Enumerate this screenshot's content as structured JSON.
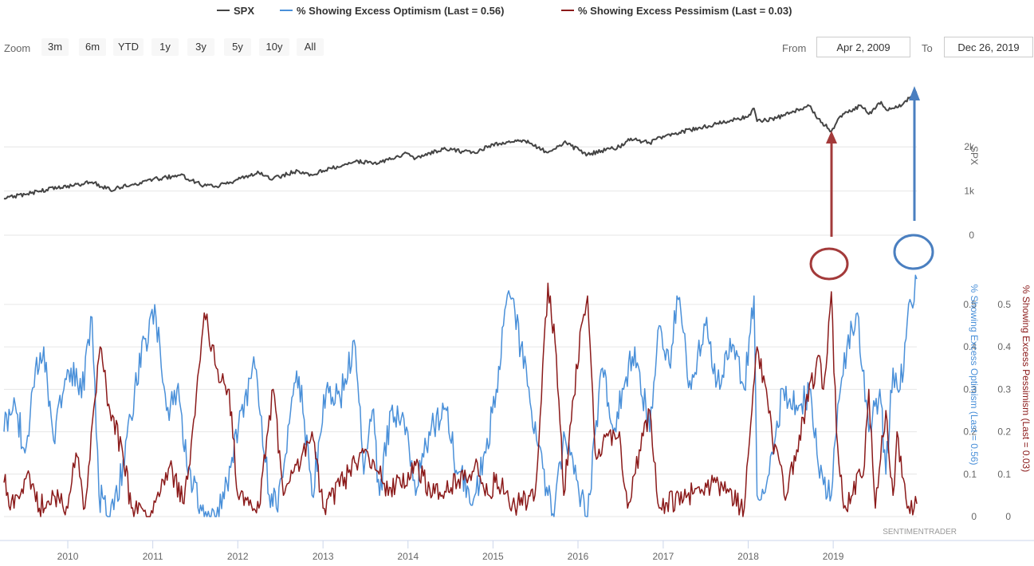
{
  "legend": [
    {
      "label": "SPX",
      "color": "#444444"
    },
    {
      "label": "% Showing Excess Optimism (Last = 0.56)",
      "color": "#4a90d9"
    },
    {
      "label": "% Showing Excess Pessimism (Last = 0.03)",
      "color": "#8b1a1a"
    }
  ],
  "zoom": {
    "label": "Zoom",
    "buttons": [
      "3m",
      "6m",
      "YTD",
      "1y",
      "3y",
      "5y",
      "10y",
      "All"
    ]
  },
  "range": {
    "from_label": "From",
    "from_value": "Apr 2, 2009",
    "to_label": "To",
    "to_value": "Dec 26, 2019"
  },
  "credit": "SENTIMENTRADER",
  "chart_data": {
    "type": "line",
    "x_range": [
      "2009-04-02",
      "2019-12-26"
    ],
    "x_ticks": [
      "2010",
      "2011",
      "2012",
      "2013",
      "2014",
      "2015",
      "2016",
      "2017",
      "2018",
      "2019"
    ],
    "panels": [
      {
        "name": "spx_panel",
        "y_axis_title": "SPX",
        "y_ticks": [
          "0",
          "1k",
          "2k"
        ],
        "ylim": [
          0,
          3250
        ],
        "series": [
          {
            "name": "SPX",
            "color": "#444444",
            "points": [
              [
                "2009-04-02",
                830
              ],
              [
                "2009-07-01",
                920
              ],
              [
                "2009-10-01",
                1030
              ],
              [
                "2010-01-01",
                1115
              ],
              [
                "2010-04-15",
                1200
              ],
              [
                "2010-07-01",
                1030
              ],
              [
                "2010-10-01",
                1140
              ],
              [
                "2011-01-01",
                1260
              ],
              [
                "2011-04-29",
                1360
              ],
              [
                "2011-08-08",
                1120
              ],
              [
                "2011-10-03",
                1100
              ],
              [
                "2012-01-01",
                1260
              ],
              [
                "2012-04-01",
                1410
              ],
              [
                "2012-06-01",
                1280
              ],
              [
                "2012-09-14",
                1460
              ],
              [
                "2012-11-15",
                1360
              ],
              [
                "2013-01-01",
                1460
              ],
              [
                "2013-05-20",
                1670
              ],
              [
                "2013-08-30",
                1630
              ],
              [
                "2013-12-31",
                1850
              ],
              [
                "2014-02-03",
                1740
              ],
              [
                "2014-06-01",
                1950
              ],
              [
                "2014-10-15",
                1860
              ],
              [
                "2014-12-31",
                2060
              ],
              [
                "2015-05-20",
                2130
              ],
              [
                "2015-08-25",
                1870
              ],
              [
                "2015-11-01",
                2100
              ],
              [
                "2016-02-11",
                1830
              ],
              [
                "2016-06-27",
                2000
              ],
              [
                "2016-08-15",
                2190
              ],
              [
                "2016-11-04",
                2085
              ],
              [
                "2016-12-31",
                2240
              ],
              [
                "2017-06-01",
                2430
              ],
              [
                "2017-12-31",
                2680
              ],
              [
                "2018-01-26",
                2870
              ],
              [
                "2018-02-08",
                2580
              ],
              [
                "2018-05-01",
                2650
              ],
              [
                "2018-09-20",
                2930
              ],
              [
                "2018-10-29",
                2640
              ],
              [
                "2018-12-24",
                2350
              ],
              [
                "2019-02-01",
                2700
              ],
              [
                "2019-04-30",
                2940
              ],
              [
                "2019-06-03",
                2740
              ],
              [
                "2019-07-26",
                3020
              ],
              [
                "2019-08-15",
                2850
              ],
              [
                "2019-10-02",
                2890
              ],
              [
                "2019-12-26",
                3240
              ]
            ]
          }
        ]
      },
      {
        "name": "sentiment_panel",
        "y_axis_title": "% Showing Excess Optimism (Last = 0.56)",
        "y2_axis_title": "% Showing Excess Pessimism (Last = 0.03)",
        "y_ticks": [
          "0",
          "0.1",
          "0.2",
          "0.3",
          "0.4",
          "0.5"
        ],
        "ylim": [
          0,
          0.56
        ],
        "series": [
          {
            "name": "% Showing Excess Optimism (Last = 0.56)",
            "color": "#4a90d9",
            "points": [
              [
                "2009-04-02",
                0.2
              ],
              [
                "2009-05-15",
                0.28
              ],
              [
                "2009-07-01",
                0.15
              ],
              [
                "2009-08-15",
                0.35
              ],
              [
                "2009-09-20",
                0.4
              ],
              [
                "2009-11-01",
                0.18
              ],
              [
                "2009-12-15",
                0.3
              ],
              [
                "2010-01-15",
                0.35
              ],
              [
                "2010-03-01",
                0.28
              ],
              [
                "2010-04-15",
                0.47
              ],
              [
                "2010-05-15",
                0.05
              ],
              [
                "2010-07-01",
                0.0
              ],
              [
                "2010-09-01",
                0.12
              ],
              [
                "2010-10-15",
                0.3
              ],
              [
                "2010-12-01",
                0.42
              ],
              [
                "2011-01-15",
                0.47
              ],
              [
                "2011-03-01",
                0.25
              ],
              [
                "2011-04-15",
                0.3
              ],
              [
                "2011-06-01",
                0.1
              ],
              [
                "2011-08-10",
                0.0
              ],
              [
                "2011-10-01",
                0.0
              ],
              [
                "2011-11-15",
                0.08
              ],
              [
                "2012-01-15",
                0.25
              ],
              [
                "2012-03-15",
                0.35
              ],
              [
                "2012-05-15",
                0.05
              ],
              [
                "2012-06-15",
                0.02
              ],
              [
                "2012-08-15",
                0.25
              ],
              [
                "2012-09-20",
                0.33
              ],
              [
                "2012-11-15",
                0.05
              ],
              [
                "2013-01-15",
                0.3
              ],
              [
                "2013-03-15",
                0.28
              ],
              [
                "2013-05-20",
                0.4
              ],
              [
                "2013-06-25",
                0.1
              ],
              [
                "2013-08-01",
                0.25
              ],
              [
                "2013-09-01",
                0.05
              ],
              [
                "2013-10-20",
                0.25
              ],
              [
                "2013-12-31",
                0.2
              ],
              [
                "2014-02-03",
                0.05
              ],
              [
                "2014-04-01",
                0.2
              ],
              [
                "2014-06-15",
                0.25
              ],
              [
                "2014-08-01",
                0.1
              ],
              [
                "2014-10-15",
                0.05
              ],
              [
                "2014-12-01",
                0.15
              ],
              [
                "2015-01-15",
                0.3
              ],
              [
                "2015-02-15",
                0.45
              ],
              [
                "2015-03-15",
                0.52
              ],
              [
                "2015-05-01",
                0.4
              ],
              [
                "2015-06-15",
                0.25
              ],
              [
                "2015-08-25",
                0.05
              ],
              [
                "2015-09-20",
                0.0
              ],
              [
                "2015-11-01",
                0.2
              ],
              [
                "2015-12-15",
                0.1
              ],
              [
                "2016-02-11",
                0.0
              ],
              [
                "2016-04-15",
                0.35
              ],
              [
                "2016-06-01",
                0.2
              ],
              [
                "2016-07-15",
                0.3
              ],
              [
                "2016-09-01",
                0.4
              ],
              [
                "2016-11-04",
                0.2
              ],
              [
                "2016-12-15",
                0.45
              ],
              [
                "2017-02-01",
                0.35
              ],
              [
                "2017-03-01",
                0.52
              ],
              [
                "2017-05-01",
                0.3
              ],
              [
                "2017-07-01",
                0.45
              ],
              [
                "2017-09-01",
                0.3
              ],
              [
                "2017-10-15",
                0.42
              ],
              [
                "2017-12-15",
                0.3
              ],
              [
                "2018-01-26",
                0.52
              ],
              [
                "2018-02-08",
                0.05
              ],
              [
                "2018-04-01",
                0.1
              ],
              [
                "2018-06-01",
                0.3
              ],
              [
                "2018-08-01",
                0.25
              ],
              [
                "2018-09-20",
                0.3
              ],
              [
                "2018-10-29",
                0.12
              ],
              [
                "2018-12-24",
                0.05
              ],
              [
                "2019-02-01",
                0.3
              ],
              [
                "2019-03-01",
                0.4
              ],
              [
                "2019-04-15",
                0.48
              ],
              [
                "2019-06-03",
                0.2
              ],
              [
                "2019-07-20",
                0.3
              ],
              [
                "2019-08-15",
                0.1
              ],
              [
                "2019-09-15",
                0.35
              ],
              [
                "2019-10-15",
                0.3
              ],
              [
                "2019-11-15",
                0.46
              ],
              [
                "2019-12-26",
                0.56
              ]
            ]
          },
          {
            "name": "% Showing Excess Pessimism (Last = 0.03)",
            "color": "#8b1a1a",
            "points": [
              [
                "2009-04-02",
                0.08
              ],
              [
                "2009-05-15",
                0.02
              ],
              [
                "2009-07-10",
                0.1
              ],
              [
                "2009-09-01",
                0.02
              ],
              [
                "2009-11-01",
                0.05
              ],
              [
                "2010-01-01",
                0.02
              ],
              [
                "2010-02-05",
                0.15
              ],
              [
                "2010-03-15",
                0.02
              ],
              [
                "2010-05-20",
                0.4
              ],
              [
                "2010-07-01",
                0.25
              ],
              [
                "2010-08-25",
                0.15
              ],
              [
                "2010-10-01",
                0.02
              ],
              [
                "2010-12-15",
                0.0
              ],
              [
                "2011-03-15",
                0.12
              ],
              [
                "2011-05-15",
                0.03
              ],
              [
                "2011-06-20",
                0.2
              ],
              [
                "2011-08-10",
                0.48
              ],
              [
                "2011-10-01",
                0.35
              ],
              [
                "2011-11-25",
                0.3
              ],
              [
                "2012-01-01",
                0.05
              ],
              [
                "2012-04-01",
                0.02
              ],
              [
                "2012-06-01",
                0.3
              ],
              [
                "2012-07-15",
                0.05
              ],
              [
                "2012-11-15",
                0.2
              ],
              [
                "2013-01-01",
                0.02
              ],
              [
                "2013-06-25",
                0.15
              ],
              [
                "2013-08-30",
                0.1
              ],
              [
                "2013-10-08",
                0.05
              ],
              [
                "2014-02-03",
                0.12
              ],
              [
                "2014-04-15",
                0.05
              ],
              [
                "2014-08-01",
                0.08
              ],
              [
                "2014-10-15",
                0.12
              ],
              [
                "2014-12-15",
                0.05
              ],
              [
                "2015-01-15",
                0.1
              ],
              [
                "2015-03-15",
                0.02
              ],
              [
                "2015-06-30",
                0.05
              ],
              [
                "2015-08-25",
                0.55
              ],
              [
                "2015-09-30",
                0.38
              ],
              [
                "2015-11-01",
                0.05
              ],
              [
                "2016-01-15",
                0.45
              ],
              [
                "2016-02-11",
                0.52
              ],
              [
                "2016-03-15",
                0.15
              ],
              [
                "2016-06-27",
                0.2
              ],
              [
                "2016-08-01",
                0.02
              ],
              [
                "2016-11-04",
                0.25
              ],
              [
                "2016-12-15",
                0.02
              ],
              [
                "2017-04-15",
                0.05
              ],
              [
                "2017-08-15",
                0.08
              ],
              [
                "2017-12-15",
                0.02
              ],
              [
                "2018-02-08",
                0.4
              ],
              [
                "2018-03-20",
                0.3
              ],
              [
                "2018-04-15",
                0.18
              ],
              [
                "2018-06-15",
                0.05
              ],
              [
                "2018-10-29",
                0.38
              ],
              [
                "2018-11-20",
                0.3
              ],
              [
                "2018-12-24",
                0.53
              ],
              [
                "2019-01-15",
                0.2
              ],
              [
                "2019-02-15",
                0.02
              ],
              [
                "2019-05-15",
                0.12
              ],
              [
                "2019-06-03",
                0.3
              ],
              [
                "2019-07-01",
                0.02
              ],
              [
                "2019-08-15",
                0.25
              ],
              [
                "2019-09-15",
                0.05
              ],
              [
                "2019-10-02",
                0.2
              ],
              [
                "2019-11-15",
                0.02
              ],
              [
                "2019-12-26",
                0.03
              ]
            ]
          }
        ]
      }
    ]
  }
}
